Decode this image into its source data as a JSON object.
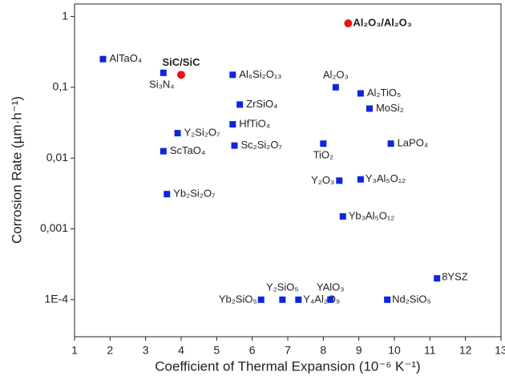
{
  "chart_data": {
    "type": "scatter",
    "xlabel": "Coefficient of Thermal Expansion (10⁻⁶ K⁻¹)",
    "ylabel": "Corrosion Rate (µm·h⁻¹)",
    "log_y": true,
    "xlim": [
      1,
      13
    ],
    "xticks": [
      1,
      2,
      3,
      4,
      5,
      6,
      7,
      8,
      9,
      10,
      11,
      12,
      13
    ],
    "ylim": [
      3e-05,
      1.5
    ],
    "yticks": [
      {
        "value": 0.0001,
        "label": "1E-4"
      },
      {
        "value": 0.001,
        "label": "0,001"
      },
      {
        "value": 0.01,
        "label": "0,01"
      },
      {
        "value": 0.1,
        "label": "0,1"
      },
      1
    ],
    "series": [
      {
        "color": "#1024e0",
        "marker": "square",
        "point_labels": [
          "AlTaO₄",
          "Si₃N₄",
          "Al₆Si₂O₁₃",
          "ZrSiO₄",
          "HfTiO₄",
          "Y₂Si₂O₇",
          "ScTaO₄",
          "Sc₂Si₂O₇",
          "Yb₂Si₂O₇",
          "Al₂O₃",
          "Al₂TiO₅",
          "MoSi₂",
          "TiO₂",
          "LaPO₄",
          "Y₂O₃",
          "Y₃Al₅O₁₂",
          "Yb₃Al₅O₁₂",
          "8YSZ",
          "Yb₂SiO₅",
          "Y₂SiO₅",
          "Y₄Al₂O₉",
          "YAlO₃",
          "Nd₂SiO₅"
        ],
        "x": [
          1.8,
          3.5,
          5.45,
          5.65,
          5.45,
          3.9,
          3.5,
          5.5,
          3.6,
          8.35,
          9.05,
          9.3,
          8.0,
          9.9,
          8.45,
          9.05,
          8.55,
          11.2,
          6.25,
          6.85,
          7.3,
          8.2,
          9.8
        ],
        "values": [
          0.25,
          0.16,
          0.15,
          0.057,
          0.03,
          0.0225,
          0.0125,
          0.015,
          0.0031,
          0.1,
          0.082,
          0.05,
          0.016,
          0.016,
          0.0048,
          0.005,
          0.0015,
          0.0002,
          0.0001,
          0.0001,
          0.0001,
          0.0001,
          0.0001
        ]
      },
      {
        "color": "#e8141c",
        "marker": "circle",
        "point_labels": [
          "SiC/SiC",
          "Al₂O₃/Al₂O₃"
        ],
        "x": [
          4.0,
          8.7
        ],
        "values": [
          0.15,
          0.8
        ]
      }
    ]
  }
}
